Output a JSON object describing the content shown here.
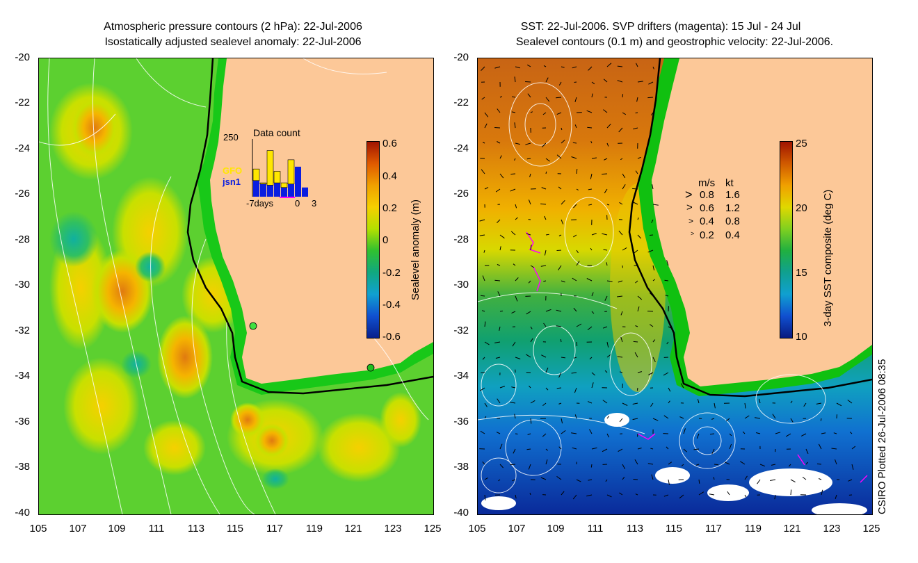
{
  "left_panel": {
    "title_line1": "Atmospheric pressure contours (2 hPa): 22-Jul-2006",
    "title_line2": "Isostatically adjusted sealevel anomaly: 22-Jul-2006",
    "y_ticks": [
      "-20",
      "-22",
      "-24",
      "-26",
      "-28",
      "-30",
      "-32",
      "-34",
      "-36",
      "-38",
      "-40"
    ],
    "x_ticks": [
      "105",
      "107",
      "109",
      "111",
      "113",
      "115",
      "117",
      "119",
      "121",
      "123",
      "125"
    ],
    "colorbar_label": "Sealevel anomaly (m)",
    "colorbar_ticks": [
      "0.6",
      "0.4",
      "0.2",
      "0",
      "-0.2",
      "-0.4",
      "-0.6"
    ],
    "inset": {
      "title": "Data count",
      "max_label": "250",
      "series1_name": "GFO",
      "series2_name": "jsn1",
      "x_left": "-7days",
      "x_mid": "0",
      "x_right": "3",
      "gfo_values": [
        120,
        60,
        200,
        110,
        60,
        160,
        80,
        0
      ],
      "jsn1_values": [
        70,
        55,
        50,
        60,
        40,
        55,
        130,
        40
      ],
      "colors": {
        "gfo": "#ffe600",
        "jsn1": "#0a1ee0"
      }
    }
  },
  "right_panel": {
    "title_line1": "SST: 22-Jul-2006. SVP drifters (magenta): 15 Jul - 24 Jul",
    "title_line2": "Sealevel contours (0.1 m) and geostrophic velocity: 22-Jul-2006.",
    "y_ticks": [
      "-20",
      "-22",
      "-24",
      "-26",
      "-28",
      "-30",
      "-32",
      "-34",
      "-36",
      "-38",
      "-40"
    ],
    "x_ticks": [
      "105",
      "107",
      "109",
      "111",
      "113",
      "115",
      "117",
      "119",
      "121",
      "123",
      "125"
    ],
    "colorbar_label": "3-day SST composite (deg C)",
    "colorbar_ticks": [
      "25",
      "20",
      "15",
      "10"
    ],
    "velocity_legend": {
      "header_ms": "m/s",
      "header_kt": "kt",
      "rows": [
        {
          "ms": "0.8",
          "kt": "1.6"
        },
        {
          "ms": "0.6",
          "kt": "1.2"
        },
        {
          "ms": "0.4",
          "kt": "0.8"
        },
        {
          "ms": "0.2",
          "kt": "0.4"
        }
      ]
    }
  },
  "credit": "CSIRO Plotted 26-Jul-2006 08:35",
  "colors": {
    "land": "#fcc898",
    "coast_green": "#14d214",
    "drifter": "#ff00ff"
  }
}
